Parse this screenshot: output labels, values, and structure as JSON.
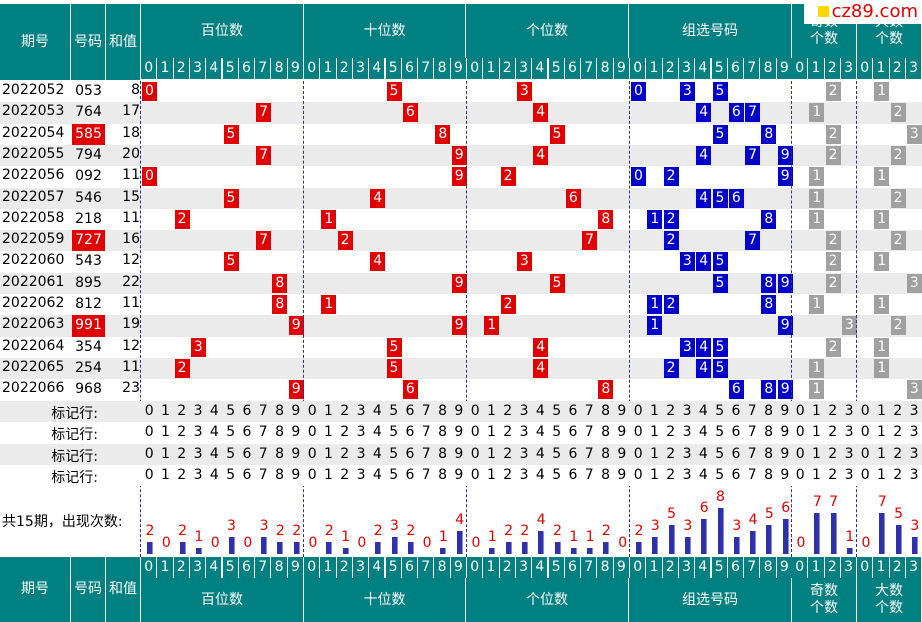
{
  "watermark": "cz89.com",
  "header": {
    "period": "期号",
    "number": "号码",
    "sum": "和值",
    "hundreds": "百位数",
    "tens": "十位数",
    "units": "个位数",
    "group": "组选号码",
    "odd_count": "奇数个数",
    "big_count": "大数个数",
    "odd_top": "奇数",
    "odd_bottom": "个数",
    "big_top": "大数",
    "big_bottom": "个数"
  },
  "footer": {
    "period": "期号",
    "number": "号码",
    "sum": "和值",
    "hundreds": "百位数",
    "tens": "十位数",
    "units": "个位数",
    "group": "组选号码",
    "odd_top": "奇数",
    "odd_bottom": "个数",
    "big_top": "大数",
    "big_bottom": "个数"
  },
  "mark_label": "标记行:",
  "count_label": "共15期，出现次数:",
  "digits10": [
    "0",
    "1",
    "2",
    "3",
    "4",
    "5",
    "6",
    "7",
    "8",
    "9"
  ],
  "digits4": [
    "0",
    "1",
    "2",
    "3"
  ],
  "chart_data": {
    "type": "table",
    "rows": [
      {
        "period": "2022052",
        "number": "053",
        "sum": "8",
        "h": 0,
        "t": 5,
        "u": 3,
        "group": [
          0,
          3,
          5
        ],
        "odd": 2,
        "big": 1,
        "hl": false
      },
      {
        "period": "2022053",
        "number": "764",
        "sum": "17",
        "h": 7,
        "t": 6,
        "u": 4,
        "group": [
          4,
          6,
          7
        ],
        "odd": 1,
        "big": 2,
        "hl": false
      },
      {
        "period": "2022054",
        "number": "585",
        "sum": "18",
        "h": 5,
        "t": 8,
        "u": 5,
        "group": [
          5,
          8
        ],
        "odd": 2,
        "big": 3,
        "hl": true
      },
      {
        "period": "2022055",
        "number": "794",
        "sum": "20",
        "h": 7,
        "t": 9,
        "u": 4,
        "group": [
          4,
          7,
          9
        ],
        "odd": 2,
        "big": 2,
        "hl": false
      },
      {
        "period": "2022056",
        "number": "092",
        "sum": "11",
        "h": 0,
        "t": 9,
        "u": 2,
        "group": [
          0,
          2,
          9
        ],
        "odd": 1,
        "big": 1,
        "hl": false
      },
      {
        "period": "2022057",
        "number": "546",
        "sum": "15",
        "h": 5,
        "t": 4,
        "u": 6,
        "group": [
          4,
          5,
          6
        ],
        "odd": 1,
        "big": 2,
        "hl": false
      },
      {
        "period": "2022058",
        "number": "218",
        "sum": "11",
        "h": 2,
        "t": 1,
        "u": 8,
        "group": [
          1,
          2,
          8
        ],
        "odd": 1,
        "big": 1,
        "hl": false
      },
      {
        "period": "2022059",
        "number": "727",
        "sum": "16",
        "h": 7,
        "t": 2,
        "u": 7,
        "group": [
          2,
          7
        ],
        "odd": 2,
        "big": 2,
        "hl": true
      },
      {
        "period": "2022060",
        "number": "543",
        "sum": "12",
        "h": 5,
        "t": 4,
        "u": 3,
        "group": [
          3,
          4,
          5
        ],
        "odd": 2,
        "big": 1,
        "hl": false
      },
      {
        "period": "2022061",
        "number": "895",
        "sum": "22",
        "h": 8,
        "t": 9,
        "u": 5,
        "group": [
          5,
          8,
          9
        ],
        "odd": 2,
        "big": 3,
        "hl": false
      },
      {
        "period": "2022062",
        "number": "812",
        "sum": "11",
        "h": 8,
        "t": 1,
        "u": 2,
        "group": [
          1,
          2,
          8
        ],
        "odd": 1,
        "big": 1,
        "hl": false
      },
      {
        "period": "2022063",
        "number": "991",
        "sum": "19",
        "h": 9,
        "t": 9,
        "u": 1,
        "group": [
          1,
          9
        ],
        "odd": 3,
        "big": 2,
        "hl": true
      },
      {
        "period": "2022064",
        "number": "354",
        "sum": "12",
        "h": 3,
        "t": 5,
        "u": 4,
        "group": [
          3,
          4,
          5
        ],
        "odd": 2,
        "big": 1,
        "hl": false
      },
      {
        "period": "2022065",
        "number": "254",
        "sum": "11",
        "h": 2,
        "t": 5,
        "u": 4,
        "group": [
          2,
          4,
          5
        ],
        "odd": 1,
        "big": 1,
        "hl": false
      },
      {
        "period": "2022066",
        "number": "968",
        "sum": "23",
        "h": 9,
        "t": 6,
        "u": 8,
        "group": [
          6,
          8,
          9
        ],
        "odd": 1,
        "big": 3,
        "hl": false
      }
    ],
    "counts": {
      "hundreds": [
        2,
        0,
        2,
        1,
        0,
        3,
        0,
        3,
        2,
        2
      ],
      "tens": [
        0,
        2,
        1,
        0,
        2,
        3,
        2,
        0,
        1,
        4
      ],
      "units": [
        0,
        1,
        2,
        2,
        4,
        2,
        1,
        1,
        2,
        0
      ],
      "group": [
        2,
        3,
        5,
        3,
        6,
        8,
        3,
        4,
        5,
        6
      ],
      "odd": [
        0,
        7,
        7,
        1
      ],
      "big": [
        0,
        7,
        5,
        3
      ]
    }
  }
}
